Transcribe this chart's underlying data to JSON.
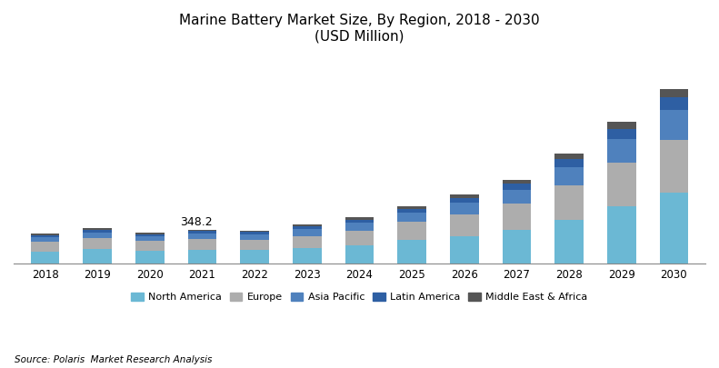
{
  "years": [
    2018,
    2019,
    2020,
    2021,
    2022,
    2023,
    2024,
    2025,
    2026,
    2027,
    2028,
    2029,
    2030
  ],
  "regions": [
    "North America",
    "Europe",
    "Asia Pacific",
    "Latin America",
    "Middle East & Africa"
  ],
  "colors": [
    "#6BB8D4",
    "#ADADAD",
    "#4F81BD",
    "#2E5FA3",
    "#555555"
  ],
  "data": {
    "North America": [
      128,
      148,
      130,
      140,
      138,
      160,
      190,
      240,
      285,
      345,
      450,
      580,
      720
    ],
    "Europe": [
      95,
      110,
      100,
      110,
      108,
      125,
      148,
      185,
      220,
      265,
      345,
      445,
      540
    ],
    "Asia Pacific": [
      48,
      58,
      50,
      58,
      55,
      65,
      78,
      95,
      115,
      140,
      185,
      240,
      300
    ],
    "Latin America": [
      22,
      27,
      22,
      25,
      24,
      28,
      33,
      40,
      50,
      62,
      82,
      105,
      130
    ],
    "Middle East & Africa": [
      15,
      19,
      15,
      15,
      15,
      18,
      22,
      27,
      32,
      40,
      52,
      68,
      82
    ]
  },
  "annotation_year": 2021,
  "annotation_value": "348.2",
  "title_line1": "Marine Battery Market Size, By Region, 2018 - 2030",
  "title_line2": "(USD Million)",
  "source_text": "Source: Polaris  Market Research Analysis",
  "bar_width": 0.55,
  "background_color": "#FFFFFF",
  "legend_fontsize": 8,
  "title_fontsize": 11
}
